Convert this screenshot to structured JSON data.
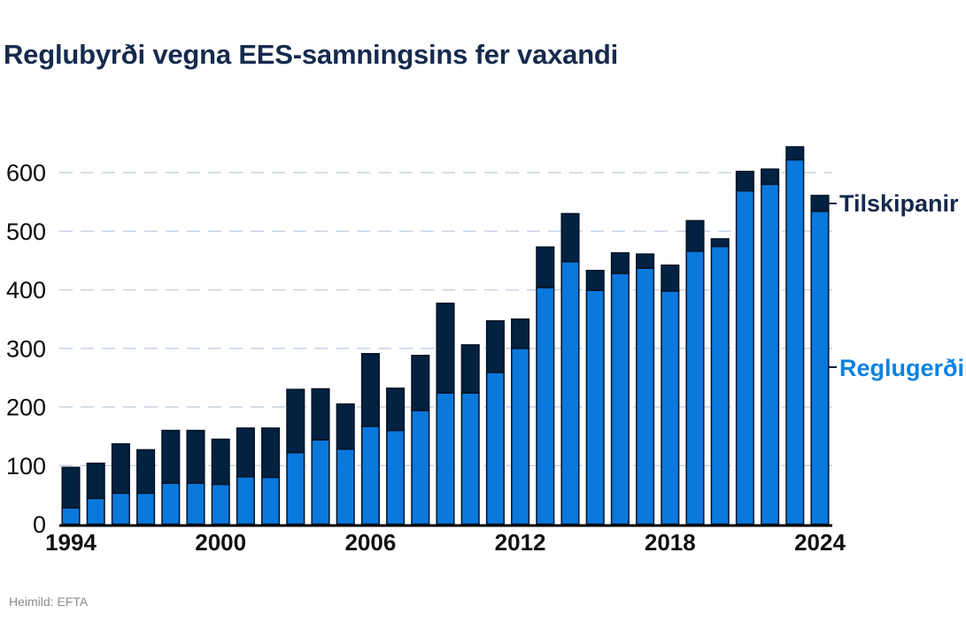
{
  "title": "Reglubyrði vegna EES-samningsins fer vaxandi",
  "source": "Heimild: EFTA",
  "legend": {
    "directives_label": "Tilskipanir",
    "regulations_label": "Reglugerðir"
  },
  "colors": {
    "regulations_blue": "#0b78dc",
    "directives_navy": "#032140",
    "bar_outline": "#001326",
    "grid": "#c9d3e1",
    "axis": "#000000",
    "tick_text": "#0b0b0b",
    "title_navy": "#152a4d",
    "legend_blue": "#0e82e0",
    "source_gray": "#8c8c8c"
  },
  "chart_data": {
    "type": "bar",
    "stacked": true,
    "title": "Reglubyrði vegna EES-samningsins fer vaxandi",
    "xlabel": "",
    "ylabel": "",
    "ylim": [
      0,
      660
    ],
    "yticks": [
      0,
      100,
      200,
      300,
      400,
      500,
      600
    ],
    "grid": "dashed horizontal",
    "legend_position": "right of last bar, direct labels",
    "categories": [
      1994,
      1995,
      1996,
      1997,
      1998,
      1999,
      2000,
      2001,
      2002,
      2003,
      2004,
      2005,
      2006,
      2007,
      2008,
      2009,
      2010,
      2011,
      2012,
      2013,
      2014,
      2015,
      2016,
      2017,
      2018,
      2019,
      2020,
      2021,
      2022,
      2023,
      2024
    ],
    "xtick_labels": [
      1994,
      2000,
      2006,
      2012,
      2018,
      2024
    ],
    "series": [
      {
        "name": "Reglugerðir",
        "color": "#0b78dc",
        "values": [
          28,
          44,
          53,
          53,
          70,
          70,
          68,
          81,
          80,
          122,
          144,
          128,
          167,
          160,
          194,
          224,
          224,
          259,
          300,
          404,
          448,
          399,
          428,
          437,
          398,
          466,
          474,
          569,
          580,
          622,
          534
        ]
      },
      {
        "name": "Tilskipanir",
        "color": "#032140",
        "values": [
          69,
          60,
          84,
          74,
          90,
          90,
          77,
          83,
          84,
          108,
          87,
          77,
          124,
          72,
          94,
          153,
          82,
          88,
          50,
          69,
          82,
          34,
          35,
          24,
          44,
          52,
          13,
          33,
          26,
          22,
          27
        ]
      }
    ],
    "totals": [
      97,
      104,
      137,
      127,
      160,
      160,
      145,
      164,
      164,
      230,
      231,
      205,
      291,
      232,
      288,
      377,
      306,
      347,
      350,
      473,
      530,
      433,
      463,
      461,
      442,
      518,
      487,
      602,
      606,
      644,
      561
    ]
  }
}
